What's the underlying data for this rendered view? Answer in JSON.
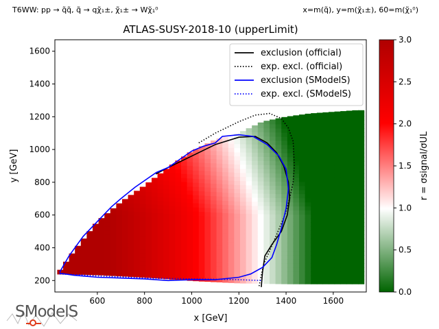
{
  "header": {
    "model_label": "T6WW: pp → q̃q̃, q̃ → qχ̃₁±, χ̃₁± → Wχ̃₁⁰",
    "mass_label": "x=m(q̃), y=m(χ̃₁±), 60=m(χ̃₁⁰)"
  },
  "logo_text": "SModelS",
  "chart_data": {
    "type": "heatmap",
    "title": "ATLAS-SUSY-2018-10 (upperLimit)",
    "xlabel": "x [GeV]",
    "ylabel": "y [GeV]",
    "xlim": [
      420,
      1740
    ],
    "ylim": [
      130,
      1670
    ],
    "xticks": [
      600,
      800,
      1000,
      1200,
      1400,
      1600
    ],
    "yticks": [
      200,
      400,
      600,
      800,
      1000,
      1200,
      1400,
      1600
    ],
    "colorbar": {
      "label": "r = σsignal/σUL",
      "range": [
        0.0,
        3.0
      ],
      "ticks": [
        "0.0",
        "0.5",
        "1.0",
        "1.5",
        "2.0",
        "2.5",
        "3.0"
      ],
      "colors": [
        "#006400",
        "#ffffff",
        "#ff0000",
        "#b00000"
      ]
    },
    "legend": {
      "position": "top-right",
      "entries": [
        {
          "name": "exclusion (official)",
          "color": "#000000",
          "style": "solid"
        },
        {
          "name": "exp. excl. (official)",
          "color": "#000000",
          "style": "dotted"
        },
        {
          "name": "exclusion (SModelS)",
          "color": "#0000ff",
          "style": "solid"
        },
        {
          "name": "exp. excl. (SModelS)",
          "color": "#0000ff",
          "style": "dotted"
        }
      ]
    },
    "regions": {
      "upper_boundary": [
        [
          430,
          240
        ],
        [
          500,
          380
        ],
        [
          600,
          560
        ],
        [
          700,
          680
        ],
        [
          800,
          780
        ],
        [
          900,
          890
        ],
        [
          1000,
          990
        ],
        [
          1100,
          1060
        ],
        [
          1200,
          1100
        ],
        [
          1300,
          1170
        ],
        [
          1400,
          1200
        ],
        [
          1500,
          1220
        ],
        [
          1600,
          1230
        ],
        [
          1700,
          1240
        ]
      ],
      "lower_boundary": [
        [
          430,
          240
        ],
        [
          600,
          235
        ],
        [
          800,
          220
        ],
        [
          1000,
          200
        ],
        [
          1200,
          185
        ],
        [
          1400,
          180
        ],
        [
          1700,
          180
        ]
      ]
    },
    "series": [
      {
        "name": "exclusion (official)",
        "x": [
          848,
          900,
          1000,
          1100,
          1200,
          1270,
          1320,
          1360,
          1390,
          1410,
          1415,
          1405,
          1380,
          1340,
          1310,
          1300,
          1295
        ],
        "y": [
          850,
          890,
          960,
          1030,
          1075,
          1080,
          1040,
          980,
          900,
          800,
          700,
          600,
          500,
          420,
          350,
          250,
          160
        ]
      },
      {
        "name": "exp. excl. (official)",
        "x": [
          1030,
          1100,
          1200,
          1270,
          1330,
          1380,
          1410,
          1430,
          1435,
          1430,
          1415,
          1395,
          1360,
          1330,
          1305,
          1290,
          1285
        ],
        "y": [
          1040,
          1100,
          1170,
          1210,
          1220,
          1190,
          1130,
          1050,
          900,
          800,
          700,
          600,
          480,
          380,
          300,
          200,
          160
        ]
      },
      {
        "name": "exclusion (SModelS)",
        "x": [
          440,
          480,
          540,
          600,
          660,
          700,
          760,
          800,
          850,
          900,
          950,
          1000,
          1050,
          1100,
          1130,
          1200,
          1260,
          1320,
          1370,
          1400,
          1410,
          1400,
          1380,
          1360,
          1340,
          1300,
          1250,
          1200,
          1100,
          1000,
          900,
          800,
          700,
          600,
          500,
          440
        ],
        "y": [
          250,
          350,
          470,
          560,
          650,
          700,
          770,
          810,
          860,
          890,
          940,
          990,
          1020,
          1040,
          1080,
          1090,
          1080,
          1030,
          960,
          880,
          760,
          640,
          520,
          420,
          340,
          280,
          240,
          220,
          205,
          205,
          200,
          210,
          215,
          220,
          232,
          245
        ]
      },
      {
        "name": "exp. excl. (SModelS)",
        "x": [
          440,
          520,
          600,
          700,
          800,
          900,
          1000,
          1100,
          1200,
          1300
        ],
        "y": [
          240,
          235,
          228,
          222,
          215,
          212,
          210,
          208,
          205,
          200
        ]
      }
    ]
  }
}
